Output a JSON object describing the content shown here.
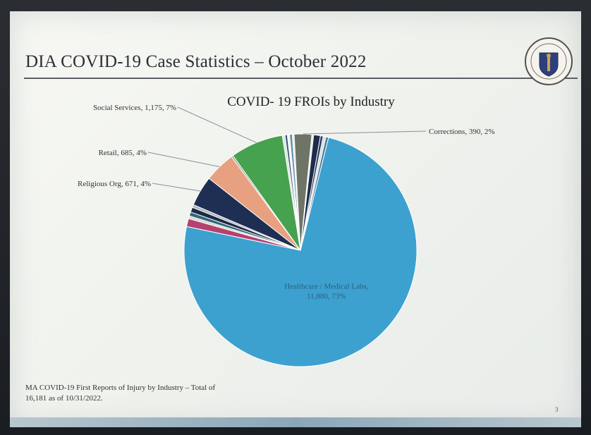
{
  "slide": {
    "title": "DIA COVID-19 Case Statistics  – October 2022",
    "note": "MA COVID-19 First Reports of Injury by Industry – Total of 16,181 as of 10/31/2022.",
    "page_number": "3",
    "seal_icon": "massachusetts-seal-icon"
  },
  "chart_data": {
    "type": "pie",
    "title": "COVID- 19 FROIs by Industry",
    "slices": [
      {
        "label": "Healthcare / Medical Labs",
        "value": 11880,
        "percent": 73,
        "color": "#3da1cf"
      },
      {
        "label": "",
        "value": 180,
        "percent": 1,
        "color": "#b5416f"
      },
      {
        "label": "",
        "value": 60,
        "percent": 0,
        "color": "#d8d3cf"
      },
      {
        "label": "",
        "value": 90,
        "percent": 1,
        "color": "#2f6b7d"
      },
      {
        "label": "",
        "value": 110,
        "percent": 1,
        "color": "#1e2a44"
      },
      {
        "label": "",
        "value": 60,
        "percent": 0,
        "color": "#a5b2bc"
      },
      {
        "label": "Religious Org",
        "value": 671,
        "percent": 4,
        "color": "#1f2f54"
      },
      {
        "label": "Retail",
        "value": 685,
        "percent": 4,
        "color": "#e7a080"
      },
      {
        "label": "",
        "value": 40,
        "percent": 0,
        "color": "#9aa39a"
      },
      {
        "label": "Social Services",
        "value": 1175,
        "percent": 7,
        "color": "#47a24f"
      },
      {
        "label": "",
        "value": 60,
        "percent": 0,
        "color": "#dde5e2"
      },
      {
        "label": "",
        "value": 50,
        "percent": 0,
        "color": "#304b6b"
      },
      {
        "label": "",
        "value": 50,
        "percent": 0,
        "color": "#f2f4f2"
      },
      {
        "label": "",
        "value": 60,
        "percent": 0,
        "color": "#5f8fa8"
      },
      {
        "label": "",
        "value": 40,
        "percent": 0,
        "color": "#e3e7e4"
      },
      {
        "label": "Corrections",
        "value": 390,
        "percent": 2,
        "color": "#6e7566"
      },
      {
        "label": "",
        "value": 40,
        "percent": 0,
        "color": "#e7ebe8"
      },
      {
        "label": "",
        "value": 150,
        "percent": 1,
        "color": "#1d2c4a"
      },
      {
        "label": "",
        "value": 60,
        "percent": 0,
        "color": "#2c3b60"
      },
      {
        "label": "",
        "value": 60,
        "percent": 0,
        "color": "#d7dde0"
      },
      {
        "label": "",
        "value": 60,
        "percent": 0,
        "color": "#4d7f9e"
      }
    ],
    "data_labels": [
      {
        "slice": 0,
        "text_line1": "Healthcare / Medical Labs,",
        "text_line2": "11,880, 73%",
        "position": "inside"
      },
      {
        "slice": 15,
        "text": "Corrections, 390, 2%",
        "position": "outside-right"
      },
      {
        "slice": 9,
        "text": "Social Services, 1,175, 7%",
        "position": "outside-left"
      },
      {
        "slice": 7,
        "text": "Retail, 685, 4%",
        "position": "outside-left"
      },
      {
        "slice": 6,
        "text": "Religious Org, 671, 4%",
        "position": "outside-left"
      }
    ]
  }
}
